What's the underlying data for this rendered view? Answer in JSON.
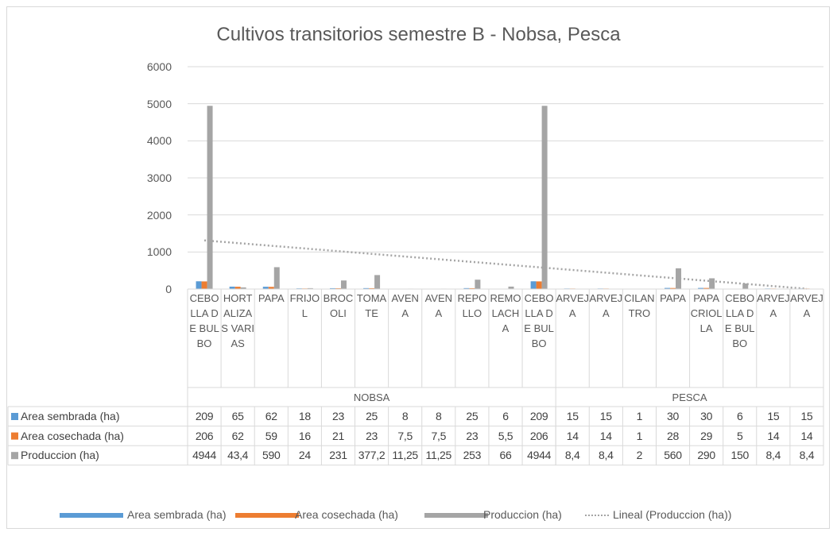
{
  "chart_data": {
    "type": "bar",
    "title": "Cultivos transitorios semestre B - Nobsa, Pesca",
    "groups": [
      {
        "name": "NOBSA",
        "categories": [
          "CEBOLLA DE BULBO",
          "HORTALIZAS VARIAS",
          "PAPA",
          "FRIJOL",
          "BROCOLI",
          "TOMATE",
          "AVENA",
          "AVENA",
          "REPOLLO",
          "REMOLACHA",
          "CEBOLLA DE BULBO"
        ]
      },
      {
        "name": "PESCA",
        "categories": [
          "ARVEJA",
          "ARVEJA",
          "CILANTRO",
          "PAPA",
          "PAPA CRIOLLA",
          "CEBOLLA DE BULBO",
          "ARVEJA",
          "ARVEJA"
        ]
      }
    ],
    "series": [
      {
        "name": "Area sembrada (ha)",
        "color": "#5b9bd5",
        "values": [
          209,
          65,
          62,
          18,
          23,
          25,
          8,
          8,
          25,
          6,
          209,
          15,
          15,
          1,
          30,
          30,
          6,
          15,
          15
        ]
      },
      {
        "name": "Area cosechada (ha)",
        "color": "#ed7d31",
        "values": [
          206,
          62,
          59,
          16,
          21,
          23,
          7.5,
          7.5,
          23,
          5.5,
          206,
          14,
          14,
          1,
          28,
          29,
          5,
          14,
          14
        ],
        "value_labels": [
          "206",
          "62",
          "59",
          "16",
          "21",
          "23",
          "7,5",
          "7,5",
          "23",
          "5,5",
          "206",
          "14",
          "14",
          "1",
          "28",
          "29",
          "5",
          "14",
          "14"
        ]
      },
      {
        "name": "Produccion (ha)",
        "color": "#a5a5a5",
        "values": [
          4944,
          43.4,
          590,
          24,
          231,
          377.2,
          11.25,
          11.25,
          253,
          66,
          4944,
          8.4,
          8.4,
          2,
          560,
          290,
          150,
          8.4,
          8.4
        ],
        "value_labels": [
          "4944",
          "43,4",
          "590",
          "24",
          "231",
          "377,2",
          "11,25",
          "11,25",
          "253",
          "66",
          "4944",
          "8,4",
          "8,4",
          "2",
          "560",
          "290",
          "150",
          "8,4",
          "8,4"
        ]
      }
    ],
    "trendline": {
      "name": "Lineal (Produccion (ha))",
      "series": 2,
      "color": "#a5a5a5"
    },
    "ylim": [
      0,
      6000
    ],
    "yticks": [
      0,
      1000,
      2000,
      3000,
      4000,
      5000,
      6000
    ],
    "grid": true
  }
}
